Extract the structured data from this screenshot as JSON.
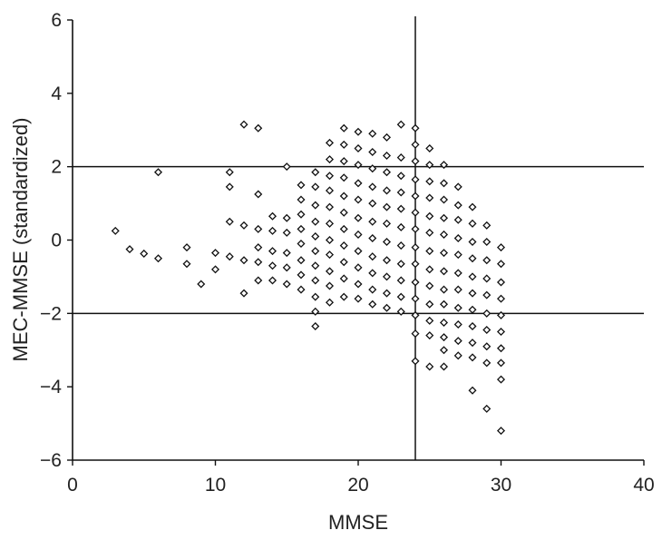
{
  "chart_data": {
    "type": "scatter",
    "title": "",
    "xlabel": "MMSE",
    "ylabel": "MEC-MMSE (standardized)",
    "xlim": [
      0,
      40
    ],
    "ylim": [
      -6,
      6
    ],
    "x_ticks": [
      0,
      10,
      20,
      30,
      40
    ],
    "y_ticks": [
      -6,
      -4,
      -2,
      0,
      2,
      4,
      6
    ],
    "x_tick_labels": [
      "0",
      "10",
      "20",
      "30",
      "40"
    ],
    "y_tick_labels": [
      "−6",
      "−4",
      "−2",
      "0",
      "2",
      "4",
      "6"
    ],
    "grid": false,
    "legend": "none",
    "marker": "open-diamond",
    "reference_lines": {
      "horizontal": [
        2,
        -2
      ],
      "vertical": [
        24
      ]
    },
    "points": [
      [
        3,
        0.25
      ],
      [
        4,
        -0.25
      ],
      [
        5,
        -0.37
      ],
      [
        6,
        1.85
      ],
      [
        6,
        -0.5
      ],
      [
        8,
        -0.2
      ],
      [
        8,
        -0.65
      ],
      [
        9,
        -1.2
      ],
      [
        10,
        -0.35
      ],
      [
        10,
        -0.8
      ],
      [
        11,
        1.85
      ],
      [
        11,
        1.45
      ],
      [
        11,
        0.5
      ],
      [
        11,
        -0.45
      ],
      [
        12,
        3.15
      ],
      [
        12,
        0.4
      ],
      [
        12,
        -0.55
      ],
      [
        12,
        -1.45
      ],
      [
        13,
        3.05
      ],
      [
        13,
        1.25
      ],
      [
        13,
        0.3
      ],
      [
        13,
        -0.2
      ],
      [
        13,
        -0.6
      ],
      [
        13,
        -1.1
      ],
      [
        14,
        0.65
      ],
      [
        14,
        0.25
      ],
      [
        14,
        -0.3
      ],
      [
        14,
        -0.7
      ],
      [
        14,
        -1.1
      ],
      [
        15,
        2.0
      ],
      [
        15,
        0.6
      ],
      [
        15,
        0.2
      ],
      [
        15,
        -0.35
      ],
      [
        15,
        -0.75
      ],
      [
        15,
        -1.2
      ],
      [
        16,
        1.5
      ],
      [
        16,
        1.1
      ],
      [
        16,
        0.7
      ],
      [
        16,
        0.3
      ],
      [
        16,
        -0.1
      ],
      [
        16,
        -0.55
      ],
      [
        16,
        -0.95
      ],
      [
        16,
        -1.35
      ],
      [
        17,
        1.85
      ],
      [
        17,
        1.45
      ],
      [
        17,
        0.95
      ],
      [
        17,
        0.5
      ],
      [
        17,
        0.1
      ],
      [
        17,
        -0.3
      ],
      [
        17,
        -0.7
      ],
      [
        17,
        -1.1
      ],
      [
        17,
        -1.55
      ],
      [
        17,
        -1.95
      ],
      [
        17,
        -2.35
      ],
      [
        18,
        2.65
      ],
      [
        18,
        2.2
      ],
      [
        18,
        1.75
      ],
      [
        18,
        1.35
      ],
      [
        18,
        0.9
      ],
      [
        18,
        0.45
      ],
      [
        18,
        0.0
      ],
      [
        18,
        -0.4
      ],
      [
        18,
        -0.85
      ],
      [
        18,
        -1.25
      ],
      [
        18,
        -1.7
      ],
      [
        19,
        3.05
      ],
      [
        19,
        2.6
      ],
      [
        19,
        2.15
      ],
      [
        19,
        1.7
      ],
      [
        19,
        1.2
      ],
      [
        19,
        0.75
      ],
      [
        19,
        0.3
      ],
      [
        19,
        -0.15
      ],
      [
        19,
        -0.6
      ],
      [
        19,
        -1.05
      ],
      [
        19,
        -1.55
      ],
      [
        20,
        2.95
      ],
      [
        20,
        2.5
      ],
      [
        20,
        2.05
      ],
      [
        20,
        1.55
      ],
      [
        20,
        1.1
      ],
      [
        20,
        0.6
      ],
      [
        20,
        0.15
      ],
      [
        20,
        -0.3
      ],
      [
        20,
        -0.75
      ],
      [
        20,
        -1.2
      ],
      [
        20,
        -1.6
      ],
      [
        21,
        2.9
      ],
      [
        21,
        2.4
      ],
      [
        21,
        1.95
      ],
      [
        21,
        1.45
      ],
      [
        21,
        1.0
      ],
      [
        21,
        0.5
      ],
      [
        21,
        0.05
      ],
      [
        21,
        -0.45
      ],
      [
        21,
        -0.9
      ],
      [
        21,
        -1.35
      ],
      [
        21,
        -1.75
      ],
      [
        22,
        2.8
      ],
      [
        22,
        2.3
      ],
      [
        22,
        1.85
      ],
      [
        22,
        1.35
      ],
      [
        22,
        0.9
      ],
      [
        22,
        0.45
      ],
      [
        22,
        -0.05
      ],
      [
        22,
        -0.55
      ],
      [
        22,
        -1.0
      ],
      [
        22,
        -1.45
      ],
      [
        22,
        -1.85
      ],
      [
        23,
        3.15
      ],
      [
        23,
        2.25
      ],
      [
        23,
        1.75
      ],
      [
        23,
        1.3
      ],
      [
        23,
        0.85
      ],
      [
        23,
        0.35
      ],
      [
        23,
        -0.15
      ],
      [
        23,
        -0.65
      ],
      [
        23,
        -1.1
      ],
      [
        23,
        -1.55
      ],
      [
        23,
        -1.95
      ],
      [
        24,
        3.05
      ],
      [
        24,
        2.6
      ],
      [
        24,
        2.15
      ],
      [
        24,
        1.65
      ],
      [
        24,
        1.2
      ],
      [
        24,
        0.75
      ],
      [
        24,
        0.3
      ],
      [
        24,
        -0.2
      ],
      [
        24,
        -0.65
      ],
      [
        24,
        -1.15
      ],
      [
        24,
        -1.6
      ],
      [
        24,
        -2.05
      ],
      [
        24,
        -2.55
      ],
      [
        24,
        -3.3
      ],
      [
        25,
        2.5
      ],
      [
        25,
        2.05
      ],
      [
        25,
        1.6
      ],
      [
        25,
        1.15
      ],
      [
        25,
        0.65
      ],
      [
        25,
        0.2
      ],
      [
        25,
        -0.3
      ],
      [
        25,
        -0.8
      ],
      [
        25,
        -1.25
      ],
      [
        25,
        -1.75
      ],
      [
        25,
        -2.2
      ],
      [
        25,
        -2.6
      ],
      [
        25,
        -3.45
      ],
      [
        26,
        2.05
      ],
      [
        26,
        1.55
      ],
      [
        26,
        1.1
      ],
      [
        26,
        0.6
      ],
      [
        26,
        0.15
      ],
      [
        26,
        -0.35
      ],
      [
        26,
        -0.85
      ],
      [
        26,
        -1.35
      ],
      [
        26,
        -1.75
      ],
      [
        26,
        -2.25
      ],
      [
        26,
        -2.65
      ],
      [
        26,
        -3.0
      ],
      [
        26,
        -3.45
      ],
      [
        27,
        1.45
      ],
      [
        27,
        0.95
      ],
      [
        27,
        0.55
      ],
      [
        27,
        0.05
      ],
      [
        27,
        -0.4
      ],
      [
        27,
        -0.9
      ],
      [
        27,
        -1.35
      ],
      [
        27,
        -1.85
      ],
      [
        27,
        -2.3
      ],
      [
        27,
        -2.75
      ],
      [
        27,
        -3.15
      ],
      [
        28,
        0.9
      ],
      [
        28,
        0.45
      ],
      [
        28,
        -0.05
      ],
      [
        28,
        -0.5
      ],
      [
        28,
        -1.0
      ],
      [
        28,
        -1.45
      ],
      [
        28,
        -1.9
      ],
      [
        28,
        -2.35
      ],
      [
        28,
        -2.8
      ],
      [
        28,
        -3.2
      ],
      [
        28,
        -4.1
      ],
      [
        29,
        0.4
      ],
      [
        29,
        -0.05
      ],
      [
        29,
        -0.55
      ],
      [
        29,
        -1.05
      ],
      [
        29,
        -1.5
      ],
      [
        29,
        -2.0
      ],
      [
        29,
        -2.45
      ],
      [
        29,
        -2.9
      ],
      [
        29,
        -3.35
      ],
      [
        29,
        -4.6
      ],
      [
        30,
        -0.2
      ],
      [
        30,
        -0.65
      ],
      [
        30,
        -1.15
      ],
      [
        30,
        -1.6
      ],
      [
        30,
        -2.05
      ],
      [
        30,
        -2.5
      ],
      [
        30,
        -2.95
      ],
      [
        30,
        -3.35
      ],
      [
        30,
        -3.8
      ],
      [
        30,
        -5.2
      ]
    ]
  }
}
